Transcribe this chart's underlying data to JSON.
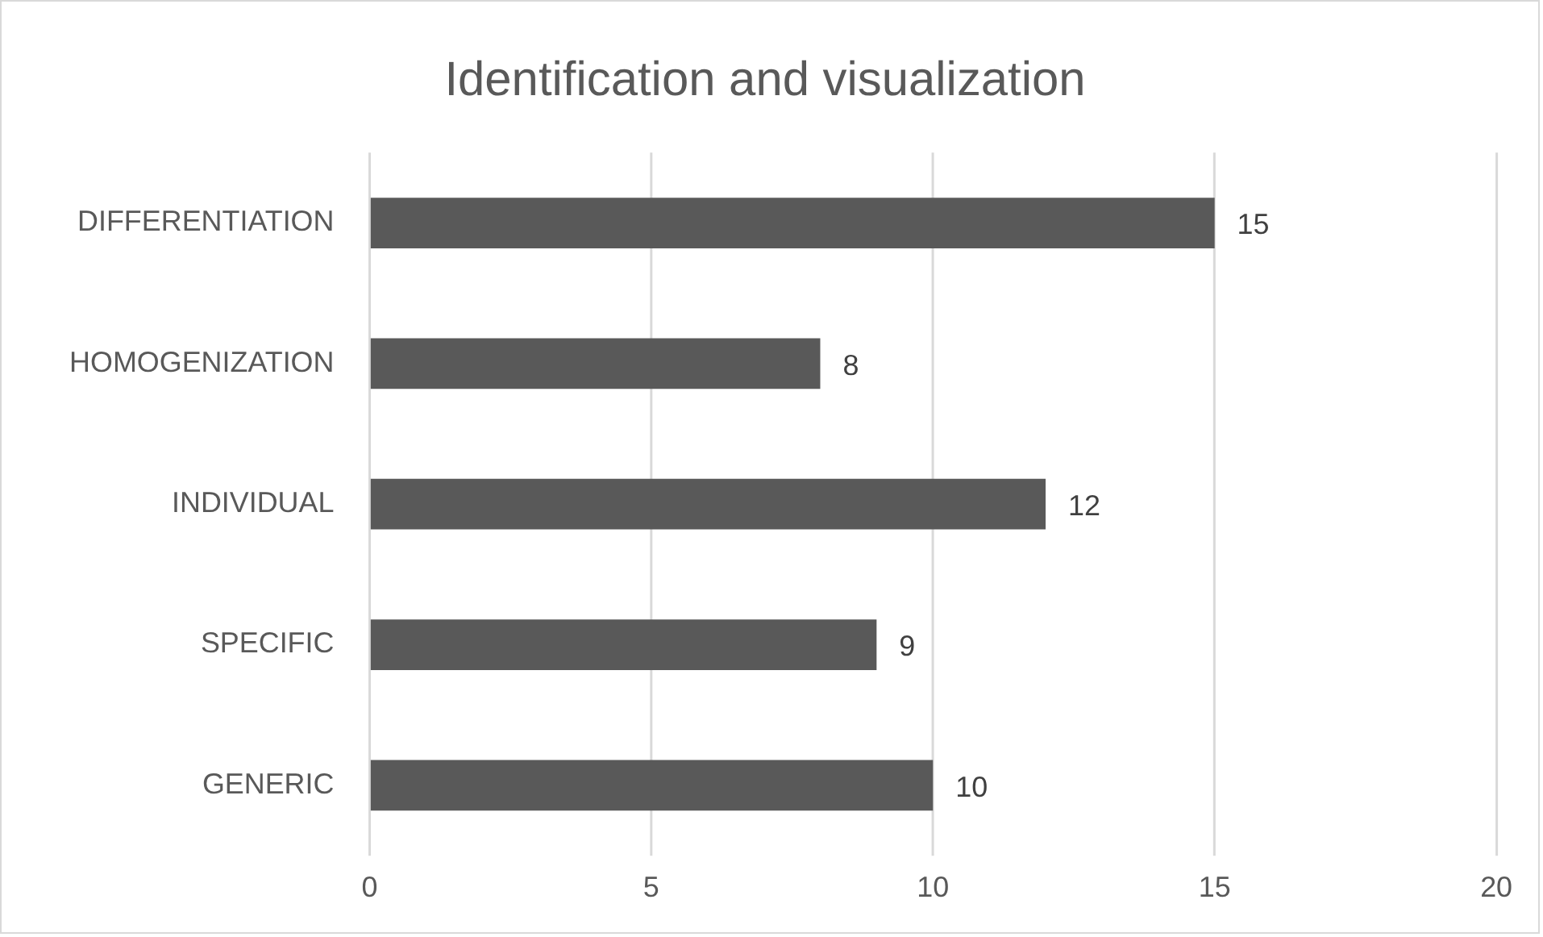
{
  "chart_data": {
    "type": "bar",
    "orientation": "horizontal",
    "title": "Identification and visualization",
    "categories": [
      "DIFFERENTIATION",
      "HOMOGENIZATION",
      "INDIVIDUAL",
      "SPECIFIC",
      "GENERIC"
    ],
    "values": [
      15,
      8,
      12,
      9,
      10
    ],
    "color": "#595959",
    "xlim": [
      0,
      20
    ],
    "xticks": [
      0,
      5,
      10,
      15,
      20
    ],
    "grid": "x",
    "data_labels": true,
    "legend": false
  }
}
